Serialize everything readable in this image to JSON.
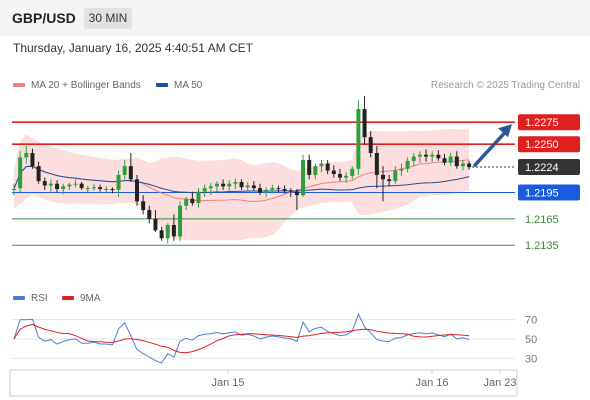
{
  "header": {
    "symbol": "GBP/USD",
    "timeframe": "30 MIN"
  },
  "timestamp": "Thursday, January 16, 2025 4:40:51 AM CET",
  "legend": {
    "ma20": {
      "label": "MA 20 + Bollinger Bands",
      "color": "#f08080"
    },
    "ma50": {
      "label": "MA 50",
      "color": "#1f4e99"
    }
  },
  "credit": "Research © 2025 Trading Central",
  "rsi_legend": {
    "rsi": {
      "label": "RSI",
      "color": "#4a7fd4"
    },
    "ma9": {
      "label": "9MA",
      "color": "#dd2222"
    }
  },
  "chart_data": {
    "type": "candlestick",
    "price_range": [
      1.2092,
      1.2306
    ],
    "current_price": "1.2224",
    "levels": [
      {
        "value": 1.2275,
        "label": "1.2275",
        "kind": "resistance",
        "color": "#e01f1f"
      },
      {
        "value": 1.225,
        "label": "1.2250",
        "kind": "resistance",
        "color": "#e01f1f"
      },
      {
        "value": 1.2195,
        "label": "1.2195",
        "kind": "pivot",
        "color": "#1a5ce0"
      },
      {
        "value": 1.2165,
        "label": "1.2165",
        "kind": "support",
        "color": "#3a8a3a"
      },
      {
        "value": 1.2135,
        "label": "1.2135",
        "kind": "support",
        "color": "#3a8a3a"
      }
    ],
    "x_ticks": [
      "Jan 15",
      "Jan 16",
      "Jan 23"
    ],
    "rsi_ticks": [
      "70",
      "50",
      "30"
    ],
    "rsi_range": [
      20,
      80
    ],
    "scenario": "bullish",
    "candles": [
      [
        1.2198,
        1.2205,
        1.2192,
        1.2199
      ],
      [
        1.22,
        1.2242,
        1.2195,
        1.2235
      ],
      [
        1.2235,
        1.2248,
        1.2228,
        1.224
      ],
      [
        1.224,
        1.2245,
        1.2222,
        1.2225
      ],
      [
        1.2225,
        1.223,
        1.2205,
        1.2208
      ],
      [
        1.2208,
        1.2212,
        1.2198,
        1.2203
      ],
      [
        1.2203,
        1.221,
        1.2196,
        1.2205
      ],
      [
        1.2205,
        1.2209,
        1.2195,
        1.2199
      ],
      [
        1.2199,
        1.2205,
        1.2193,
        1.2202
      ],
      [
        1.2202,
        1.2206,
        1.2198,
        1.2204
      ],
      [
        1.2204,
        1.221,
        1.2201,
        1.2205
      ],
      [
        1.2205,
        1.2207,
        1.2198,
        1.22
      ],
      [
        1.22,
        1.2203,
        1.2195,
        1.22
      ],
      [
        1.22,
        1.2205,
        1.2197,
        1.2201
      ],
      [
        1.2201,
        1.2204,
        1.2196,
        1.2199
      ],
      [
        1.2199,
        1.2202,
        1.2195,
        1.2199
      ],
      [
        1.2199,
        1.2201,
        1.2194,
        1.2198
      ],
      [
        1.2198,
        1.222,
        1.219,
        1.2215
      ],
      [
        1.2215,
        1.2232,
        1.221,
        1.2225
      ],
      [
        1.2225,
        1.224,
        1.2207,
        1.221
      ],
      [
        1.221,
        1.2215,
        1.218,
        1.2185
      ],
      [
        1.2185,
        1.2192,
        1.217,
        1.2175
      ],
      [
        1.2175,
        1.218,
        1.216,
        1.2165
      ],
      [
        1.2165,
        1.2175,
        1.215,
        1.2152
      ],
      [
        1.2152,
        1.2156,
        1.214,
        1.2143
      ],
      [
        1.2143,
        1.216,
        1.2137,
        1.2158
      ],
      [
        1.2158,
        1.217,
        1.214,
        1.2145
      ],
      [
        1.2145,
        1.2185,
        1.214,
        1.218
      ],
      [
        1.218,
        1.219,
        1.2175,
        1.2188
      ],
      [
        1.2188,
        1.2196,
        1.218,
        1.2183
      ],
      [
        1.2183,
        1.22,
        1.2178,
        1.2196
      ],
      [
        1.2196,
        1.2204,
        1.219,
        1.22
      ],
      [
        1.22,
        1.2206,
        1.2192,
        1.2202
      ],
      [
        1.2202,
        1.2208,
        1.2196,
        1.2205
      ],
      [
        1.2205,
        1.221,
        1.2198,
        1.2202
      ],
      [
        1.2202,
        1.2209,
        1.2197,
        1.2205
      ],
      [
        1.2205,
        1.2211,
        1.2199,
        1.2207
      ],
      [
        1.2207,
        1.221,
        1.2198,
        1.2201
      ],
      [
        1.2201,
        1.2207,
        1.2196,
        1.2203
      ],
      [
        1.2203,
        1.2208,
        1.2197,
        1.22
      ],
      [
        1.22,
        1.2205,
        1.2192,
        1.2195
      ],
      [
        1.2195,
        1.2201,
        1.219,
        1.2198
      ],
      [
        1.2198,
        1.2204,
        1.2194,
        1.22
      ],
      [
        1.22,
        1.2203,
        1.2195,
        1.2199
      ],
      [
        1.2199,
        1.2203,
        1.2194,
        1.2197
      ],
      [
        1.2197,
        1.22,
        1.219,
        1.2196
      ],
      [
        1.2196,
        1.2199,
        1.2175,
        1.2192
      ],
      [
        1.2192,
        1.2238,
        1.219,
        1.2232
      ],
      [
        1.2232,
        1.2238,
        1.221,
        1.2215
      ],
      [
        1.2215,
        1.2228,
        1.221,
        1.2225
      ],
      [
        1.2225,
        1.2232,
        1.2218,
        1.2228
      ],
      [
        1.2228,
        1.2232,
        1.2216,
        1.222
      ],
      [
        1.222,
        1.2226,
        1.2212,
        1.2216
      ],
      [
        1.2216,
        1.2222,
        1.2208,
        1.2212
      ],
      [
        1.2212,
        1.2218,
        1.2206,
        1.2214
      ],
      [
        1.2214,
        1.2225,
        1.221,
        1.2222
      ],
      [
        1.2222,
        1.23,
        1.2215,
        1.229
      ],
      [
        1.229,
        1.2305,
        1.225,
        1.2258
      ],
      [
        1.2258,
        1.2265,
        1.2235,
        1.224
      ],
      [
        1.224,
        1.2248,
        1.22,
        1.2215
      ],
      [
        1.2215,
        1.2225,
        1.2185,
        1.221
      ],
      [
        1.221,
        1.2215,
        1.2202,
        1.2208
      ],
      [
        1.2208,
        1.2225,
        1.2205,
        1.222
      ],
      [
        1.222,
        1.2228,
        1.2214,
        1.2222
      ],
      [
        1.2222,
        1.2235,
        1.2218,
        1.2231
      ],
      [
        1.2231,
        1.224,
        1.2225,
        1.2236
      ],
      [
        1.2236,
        1.2242,
        1.2229,
        1.2238
      ],
      [
        1.2238,
        1.2244,
        1.223,
        1.2236
      ],
      [
        1.2236,
        1.2242,
        1.223,
        1.2238
      ],
      [
        1.2238,
        1.2243,
        1.2231,
        1.2234
      ],
      [
        1.2234,
        1.2239,
        1.2226,
        1.2229
      ],
      [
        1.2229,
        1.224,
        1.2225,
        1.2236
      ],
      [
        1.2236,
        1.2242,
        1.2222,
        1.2225
      ],
      [
        1.2225,
        1.2232,
        1.222,
        1.2228
      ],
      [
        1.2228,
        1.2231,
        1.2221,
        1.2224
      ]
    ]
  }
}
